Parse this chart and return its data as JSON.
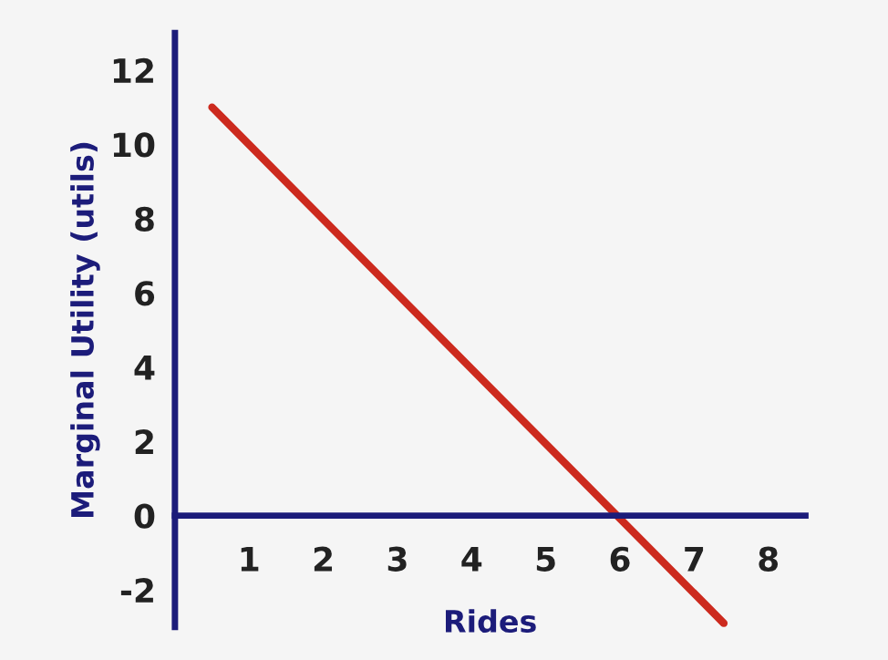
{
  "chart_data": {
    "type": "line",
    "xlabel": "Rides",
    "ylabel": "Marginal Utility (utils)",
    "series": [
      {
        "color": "#cc2a1e",
        "x": [
          0.5,
          7.4
        ],
        "values": [
          11,
          -2.9
        ]
      }
    ],
    "xlim": [
      0,
      8.5
    ],
    "ylim": [
      -3,
      13
    ],
    "xticks": [
      1,
      2,
      3,
      4,
      5,
      6,
      7,
      8
    ],
    "yticks": [
      -2,
      0,
      2,
      4,
      6,
      8,
      10,
      12
    ],
    "grid": false,
    "legend": false,
    "marker": "none",
    "line_style": "solid"
  }
}
